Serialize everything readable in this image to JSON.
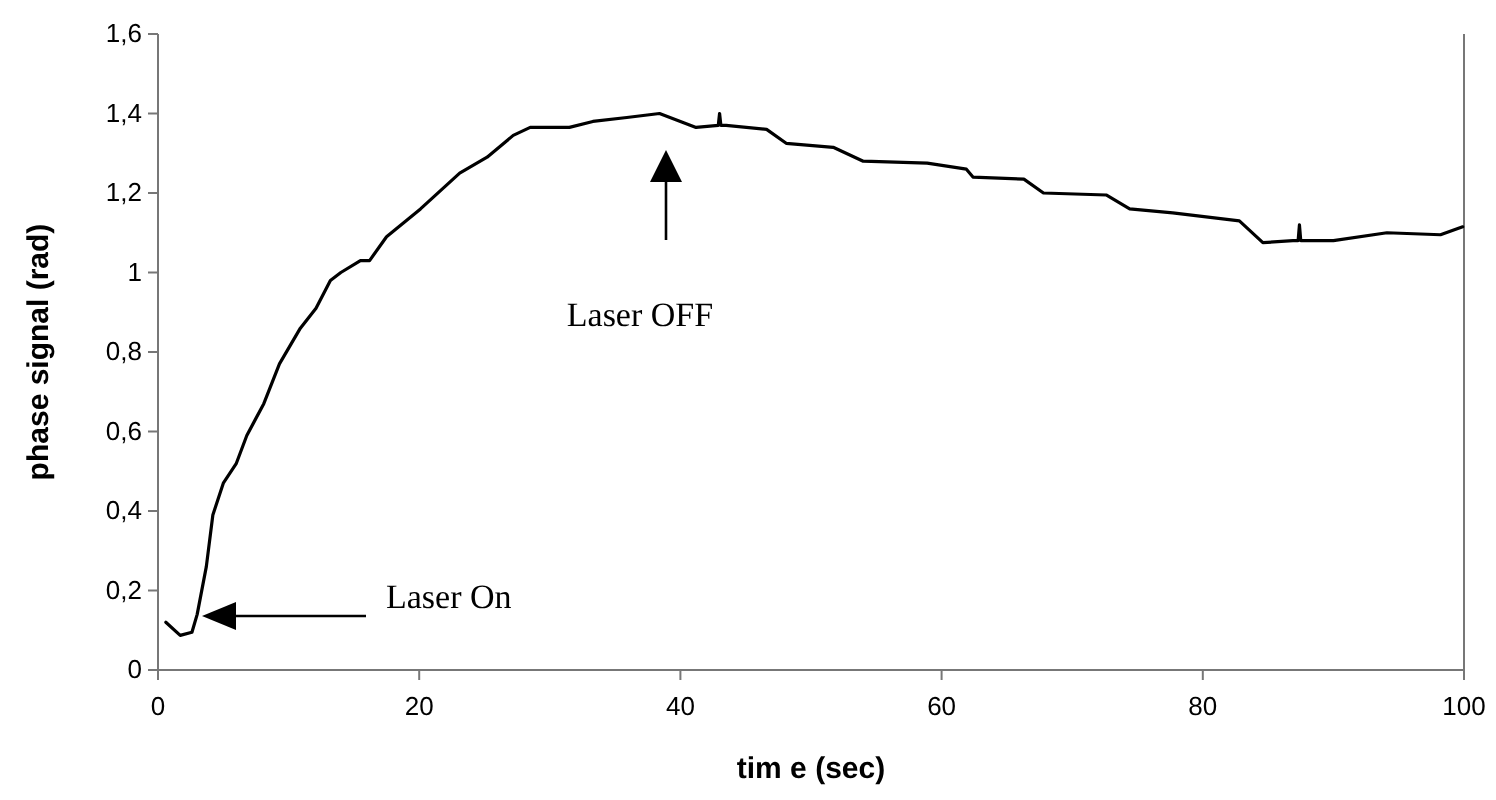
{
  "chart_data": {
    "type": "line",
    "xlabel": "tim e (sec)",
    "ylabel": "phase signal (rad)",
    "xlim": [
      0,
      100
    ],
    "xticks": [
      0,
      20,
      40,
      60,
      80,
      100
    ],
    "ylim": [
      0,
      1.6
    ],
    "yticks": [
      0,
      {
        "value": 0.2,
        "label": "0,2"
      },
      {
        "value": 0.4,
        "label": "0,4"
      },
      {
        "value": 0.6,
        "label": "0,6"
      },
      {
        "value": 0.8,
        "label": "0,8"
      },
      1,
      {
        "value": 1.2,
        "label": "1,2"
      },
      {
        "value": 1.4,
        "label": "1,4"
      },
      {
        "value": 1.6,
        "label": "1,6"
      }
    ],
    "grid": false,
    "marker": "none",
    "line_style": "solid",
    "series": [
      {
        "color": "#000000",
        "x": [
          0.6,
          1.7,
          2.6,
          3.0,
          3.7,
          4.2,
          5.0,
          6.0,
          6.8,
          8.1,
          9.3,
          10.9,
          12.1,
          13.2,
          14.0,
          15.5,
          16.2,
          17.5,
          20.1,
          23.1,
          25.2,
          27.2,
          28.5,
          31.5,
          33.3,
          35.9,
          38.4,
          41.2,
          42.9,
          43.0,
          43.1,
          43.5,
          46.6,
          48.1,
          51.7,
          54.0,
          58.9,
          61.9,
          62.4,
          66.3,
          67.8,
          72.6,
          74.4,
          77.7,
          82.8,
          84.6,
          86.9,
          87.3,
          87.4,
          87.5,
          87.9,
          90.0,
          94.1,
          98.2,
          99.9
        ],
        "values": [
          0.12,
          0.087,
          0.095,
          0.14,
          0.26,
          0.39,
          0.47,
          0.52,
          0.59,
          0.67,
          0.77,
          0.86,
          0.91,
          0.98,
          1.0,
          1.03,
          1.03,
          1.09,
          1.16,
          1.25,
          1.29,
          1.345,
          1.365,
          1.365,
          1.38,
          1.39,
          1.4,
          1.365,
          1.37,
          1.4,
          1.37,
          1.37,
          1.36,
          1.325,
          1.315,
          1.28,
          1.275,
          1.26,
          1.24,
          1.235,
          1.2,
          1.195,
          1.16,
          1.15,
          1.13,
          1.075,
          1.08,
          1.08,
          1.12,
          1.08,
          1.08,
          1.08,
          1.1,
          1.095,
          1.115
        ]
      }
    ],
    "annotations": [
      "Laser On",
      "Laser OFF"
    ]
  }
}
